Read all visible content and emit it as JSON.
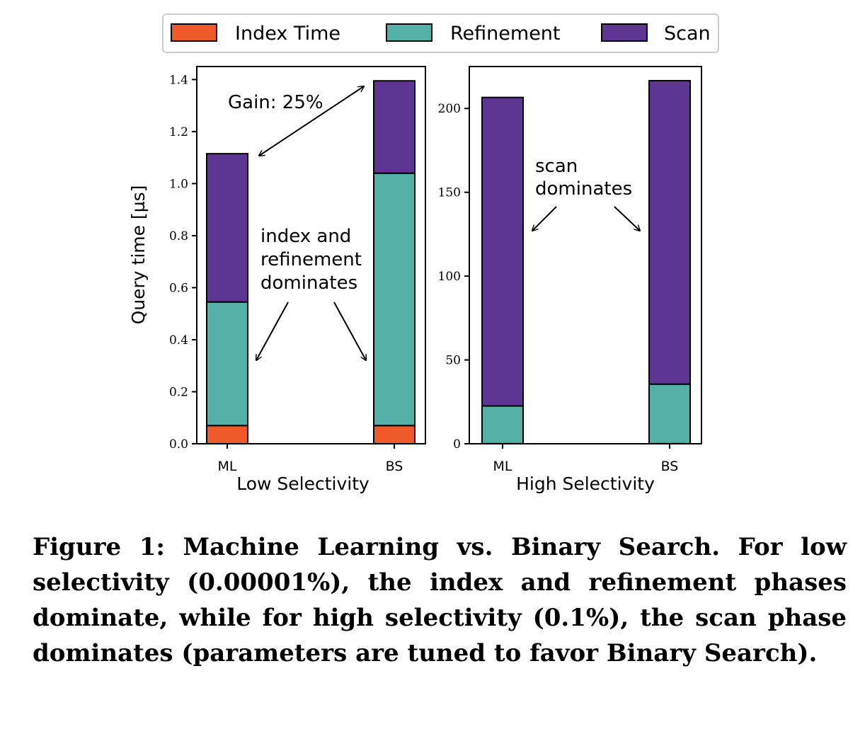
{
  "legend": {
    "entries": [
      {
        "label": "Index Time",
        "color": "#f05a28"
      },
      {
        "label": "Refinement",
        "color": "#54b1a8"
      },
      {
        "label": "Scan",
        "color": "#5e3593"
      }
    ]
  },
  "colors": {
    "index": "#f05a28",
    "refinement": "#54b1a8",
    "scan": "#5e3593",
    "axis": "#000000"
  },
  "chart_data": [
    {
      "type": "bar",
      "stacked": true,
      "title": "",
      "xlabel": "Low Selectivity",
      "ylabel": "Query time [µs]",
      "categories": [
        "ML",
        "BS"
      ],
      "ylim": [
        0,
        1.45
      ],
      "yticks": [
        0.0,
        0.2,
        0.4,
        0.6,
        0.8,
        1.0,
        1.2,
        1.4
      ],
      "ytick_labels": [
        "0.0",
        "0.2",
        "0.4",
        "0.6",
        "0.8",
        "1.0",
        "1.2",
        "1.4"
      ],
      "series": [
        {
          "name": "Index Time",
          "values": [
            0.07,
            0.07
          ]
        },
        {
          "name": "Refinement",
          "values": [
            0.475,
            0.97
          ]
        },
        {
          "name": "Scan",
          "values": [
            0.57,
            0.355
          ]
        }
      ],
      "annotations": {
        "gain": "Gain: 25%",
        "dominates": [
          "index and",
          "refinement",
          "dominates"
        ]
      }
    },
    {
      "type": "bar",
      "stacked": true,
      "title": "",
      "xlabel": "High Selectivity",
      "ylabel": "",
      "categories": [
        "ML",
        "BS"
      ],
      "ylim": [
        0,
        225
      ],
      "yticks": [
        0,
        50,
        100,
        150,
        200
      ],
      "ytick_labels": [
        "0",
        "50",
        "100",
        "150",
        "200"
      ],
      "series": [
        {
          "name": "Index Time",
          "values": [
            0.07,
            0.07
          ]
        },
        {
          "name": "Refinement",
          "values": [
            22.5,
            35.5
          ]
        },
        {
          "name": "Scan",
          "values": [
            184,
            181
          ]
        }
      ],
      "annotations": {
        "dominates": [
          "scan",
          "dominates"
        ]
      }
    }
  ],
  "caption": "Figure 1: Machine Learning vs. Binary Search. For low selectivity (0.00001%), the index and refinement phases dominate, while for high selectivity (0.1%), the scan phase dominates (parameters are tuned to favor Binary Search)."
}
